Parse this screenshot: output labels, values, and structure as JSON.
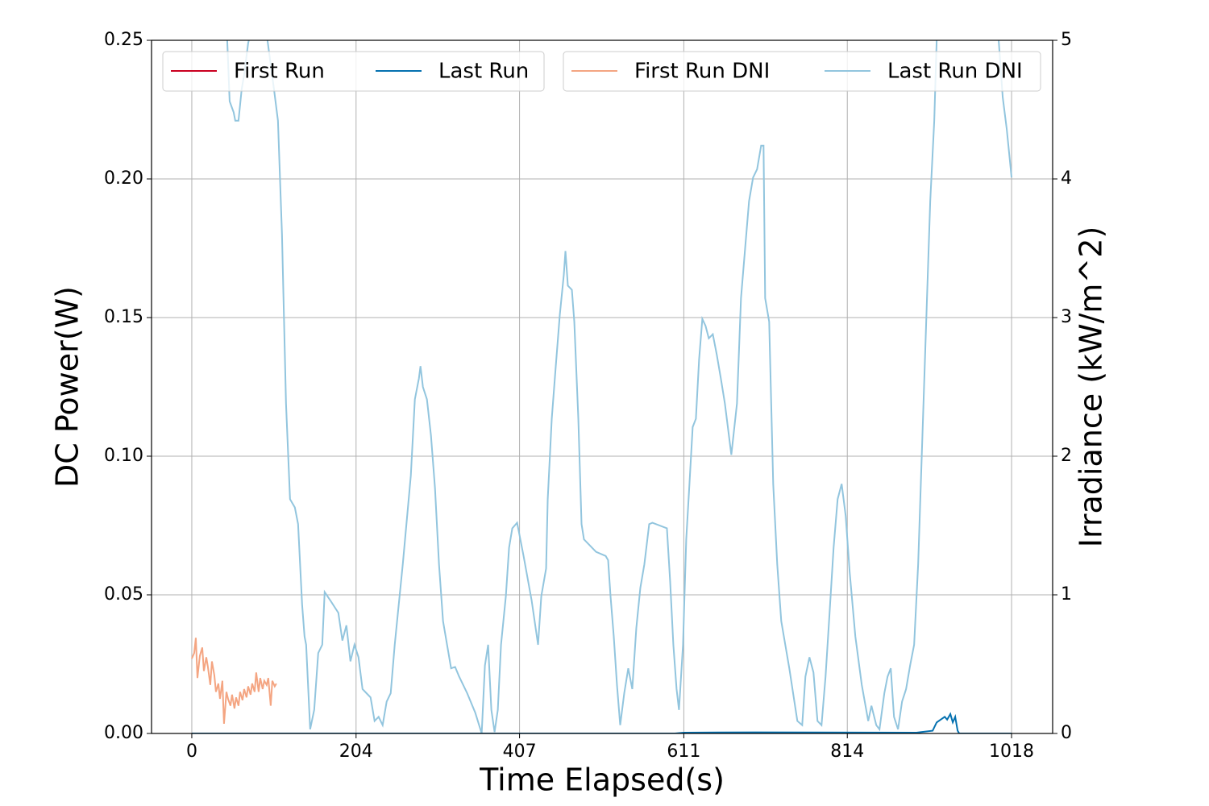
{
  "chart_data": {
    "type": "line",
    "xlabel": "Time Elapsed(s)",
    "ylabel": "DC Power(W)",
    "y2label": "Irradiance (kW/m^2)",
    "xlim": [
      -50,
      1069
    ],
    "xticks": [
      0,
      204,
      407,
      611,
      814,
      1018
    ],
    "ylim": [
      0,
      0.25
    ],
    "yticks": [
      {
        "value": 0,
        "label": "0.00"
      },
      {
        "value": 0.05,
        "label": "0.05"
      },
      {
        "value": 0.1,
        "label": "0.10"
      },
      {
        "value": 0.15,
        "label": "0.15"
      },
      {
        "value": 0.2,
        "label": "0.20"
      },
      {
        "value": 0.25,
        "label": "0.25"
      }
    ],
    "y2lim": [
      0,
      5
    ],
    "y2ticks": [
      0,
      1,
      2,
      3,
      4,
      5
    ],
    "grid": true,
    "series": [
      {
        "name": "First Run",
        "color": "#ca0020",
        "x": [
          0,
          105
        ],
        "values": [
          0,
          0
        ]
      },
      {
        "name": "Last Run",
        "color": "#0571b0",
        "x": [
          0,
          600,
          611,
          700,
          900,
          920,
          925,
          930,
          935,
          938,
          942,
          945,
          948,
          951,
          953,
          1018
        ],
        "values": [
          0,
          0,
          0.0003,
          0.0004,
          0.0003,
          0.001,
          0.004,
          0.005,
          0.006,
          0.005,
          0.007,
          0.004,
          0.006,
          0.001,
          0,
          0
        ]
      },
      {
        "name": "First Run DNI",
        "color": "#f4a582",
        "axis": "y2",
        "x": [
          0,
          3,
          5,
          7,
          10,
          13,
          15,
          18,
          20,
          23,
          25,
          28,
          30,
          33,
          35,
          38,
          40,
          43,
          45,
          48,
          50,
          53,
          55,
          58,
          60,
          63,
          65,
          68,
          70,
          73,
          75,
          78,
          80,
          83,
          85,
          88,
          90,
          93,
          95,
          98,
          100,
          103,
          105
        ],
        "values": [
          0.54,
          0.58,
          0.69,
          0.4,
          0.56,
          0.62,
          0.45,
          0.55,
          0.48,
          0.35,
          0.52,
          0.42,
          0.3,
          0.36,
          0.25,
          0.38,
          0.07,
          0.3,
          0.25,
          0.2,
          0.28,
          0.18,
          0.26,
          0.2,
          0.3,
          0.24,
          0.32,
          0.26,
          0.34,
          0.28,
          0.36,
          0.3,
          0.44,
          0.3,
          0.4,
          0.32,
          0.38,
          0.35,
          0.4,
          0.2,
          0.38,
          0.34,
          0.36
        ]
      },
      {
        "name": "Last Run DNI",
        "color": "#92c5de",
        "axis": "y2",
        "x": [
          42,
          44,
          47,
          52,
          54,
          58,
          62,
          65,
          70,
          75,
          85,
          94,
          102,
          107,
          112,
          117,
          122,
          128,
          132,
          137,
          140,
          142,
          147,
          152,
          157,
          162,
          165,
          172,
          182,
          187,
          192,
          197,
          202,
          207,
          212,
          217,
          222,
          227,
          232,
          237,
          242,
          247,
          252,
          262,
          272,
          277,
          282,
          284,
          287,
          292,
          297,
          302,
          307,
          312,
          317,
          322,
          327,
          332,
          342,
          352,
          360,
          364,
          368,
          372,
          376,
          380,
          384,
          390,
          394,
          398,
          404,
          412,
          422,
          430,
          434,
          440,
          442,
          447,
          452,
          457,
          462,
          464,
          467,
          472,
          475,
          480,
          484,
          487,
          502,
          514,
          517,
          520,
          524,
          528,
          532,
          537,
          542,
          547,
          552,
          557,
          562,
          568,
          572,
          590,
          594,
          598,
          602,
          605,
          610,
          614,
          618,
          622,
          626,
          630,
          634,
          638,
          642,
          647,
          652,
          657,
          662,
          670,
          677,
          682,
          687,
          692,
          697,
          702,
          707,
          710,
          712,
          717,
          722,
          727,
          732,
          742,
          752,
          758,
          762,
          767,
          772,
          777,
          782,
          787,
          792,
          797,
          802,
          807,
          812,
          817,
          824,
          832,
          840,
          844,
          850,
          854,
          860,
          864,
          868,
          872,
          877,
          882,
          887,
          892,
          897,
          902,
          912,
          917,
          922,
          925,
          930,
          1002,
          1007,
          1012,
          1018
        ],
        "values": [
          5.2,
          5.0,
          4.56,
          4.48,
          4.42,
          4.42,
          4.65,
          4.75,
          4.98,
          5.1,
          5.2,
          5.0,
          4.65,
          4.42,
          3.6,
          2.38,
          1.69,
          1.63,
          1.51,
          0.93,
          0.7,
          0.64,
          0.03,
          0.17,
          0.58,
          0.64,
          1.02,
          0.96,
          0.87,
          0.67,
          0.78,
          0.52,
          0.64,
          0.55,
          0.32,
          0.29,
          0.26,
          0.09,
          0.12,
          0.06,
          0.23,
          0.29,
          0.64,
          1.22,
          1.86,
          2.41,
          2.56,
          2.65,
          2.5,
          2.41,
          2.15,
          1.77,
          1.22,
          0.81,
          0.64,
          0.47,
          0.48,
          0.41,
          0.29,
          0.15,
          0,
          0.49,
          0.64,
          0.17,
          0.01,
          0.17,
          0.64,
          0.99,
          1.34,
          1.48,
          1.52,
          1.28,
          0.96,
          0.64,
          0.99,
          1.19,
          1.69,
          2.27,
          2.65,
          3.02,
          3.31,
          3.48,
          3.23,
          3.2,
          2.97,
          2.27,
          1.51,
          1.4,
          1.31,
          1.28,
          1.25,
          0.99,
          0.7,
          0.35,
          0.06,
          0.29,
          0.47,
          0.32,
          0.76,
          1.05,
          1.22,
          1.51,
          1.52,
          1.48,
          1.1,
          0.64,
          0.32,
          0.17,
          0.64,
          1.4,
          1.8,
          2.21,
          2.27,
          2.7,
          2.99,
          2.94,
          2.85,
          2.88,
          2.73,
          2.56,
          2.38,
          2.01,
          2.38,
          3.14,
          3.49,
          3.84,
          4.01,
          4.07,
          4.24,
          4.24,
          3.14,
          2.97,
          1.8,
          1.22,
          0.81,
          0.47,
          0.09,
          0.06,
          0.41,
          0.55,
          0.44,
          0.09,
          0.06,
          0.41,
          0.87,
          1.34,
          1.69,
          1.8,
          1.57,
          1.16,
          0.7,
          0.35,
          0.09,
          0.2,
          0.06,
          0.03,
          0.29,
          0.41,
          0.47,
          0.12,
          0.03,
          0.23,
          0.32,
          0.49,
          0.64,
          1.22,
          2.97,
          3.84,
          4.42,
          5.0,
          5.2,
          5.0,
          4.59,
          4.36,
          4.01
        ]
      }
    ]
  }
}
